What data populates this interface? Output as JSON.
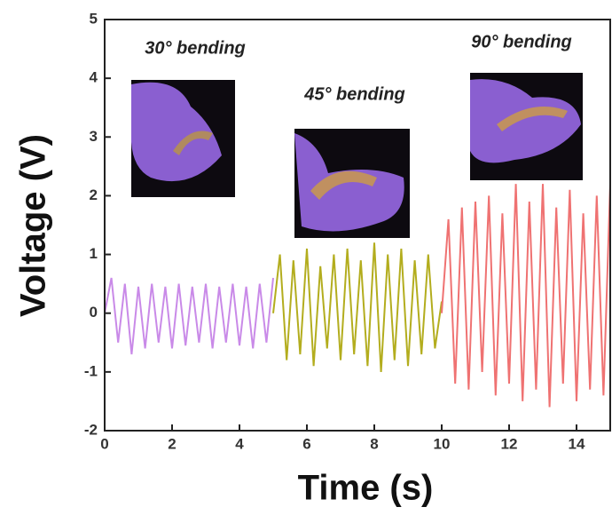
{
  "chart_data": {
    "type": "line",
    "x_label": "Time (s)",
    "y_label": "Voltage (V)",
    "xlim": [
      0,
      15
    ],
    "ylim": [
      -2,
      5
    ],
    "xticks": [
      0,
      2,
      4,
      6,
      8,
      10,
      12,
      14
    ],
    "yticks": [
      -2,
      -1,
      0,
      1,
      2,
      3,
      4,
      5
    ],
    "annotations": [
      "30° bending",
      "45° bending",
      "90° bending"
    ],
    "series": [
      {
        "color": "#c98ae8",
        "x": [
          0.0,
          0.2,
          0.4,
          0.6,
          0.8,
          1.0,
          1.2,
          1.4,
          1.6,
          1.8,
          2.0,
          2.2,
          2.4,
          2.6,
          2.8,
          3.0,
          3.2,
          3.4,
          3.6,
          3.8,
          4.0,
          4.2,
          4.4,
          4.6,
          4.8,
          5.0
        ],
        "values": [
          0,
          0.6,
          -0.5,
          0.5,
          -0.7,
          0.45,
          -0.6,
          0.5,
          -0.5,
          0.45,
          -0.6,
          0.5,
          -0.55,
          0.45,
          -0.5,
          0.5,
          -0.6,
          0.45,
          -0.5,
          0.5,
          -0.55,
          0.45,
          -0.6,
          0.5,
          -0.5,
          0.6
        ]
      },
      {
        "color": "#b3ad1e",
        "x": [
          5.0,
          5.2,
          5.4,
          5.6,
          5.8,
          6.0,
          6.2,
          6.4,
          6.6,
          6.8,
          7.0,
          7.2,
          7.4,
          7.6,
          7.8,
          8.0,
          8.2,
          8.4,
          8.6,
          8.8,
          9.0,
          9.2,
          9.4,
          9.6,
          9.8,
          10.0
        ],
        "values": [
          0,
          1.0,
          -0.8,
          0.9,
          -0.7,
          1.1,
          -0.9,
          0.8,
          -0.6,
          1.0,
          -0.8,
          1.1,
          -0.7,
          0.9,
          -0.9,
          1.2,
          -1.0,
          1.0,
          -0.8,
          1.1,
          -0.9,
          0.9,
          -0.7,
          1.0,
          -0.6,
          0.2
        ]
      },
      {
        "color": "#ef7272",
        "x": [
          10.0,
          10.2,
          10.4,
          10.6,
          10.8,
          11.0,
          11.2,
          11.4,
          11.6,
          11.8,
          12.0,
          12.2,
          12.4,
          12.6,
          12.8,
          13.0,
          13.2,
          13.4,
          13.6,
          13.8,
          14.0,
          14.2,
          14.4,
          14.6,
          14.8,
          15.0
        ],
        "values": [
          0,
          1.6,
          -1.2,
          1.8,
          -1.3,
          1.9,
          -1.0,
          2.0,
          -1.4,
          1.7,
          -1.2,
          2.2,
          -1.5,
          1.9,
          -1.3,
          2.2,
          -1.6,
          1.8,
          -1.2,
          2.1,
          -1.5,
          1.7,
          -1.3,
          2.0,
          -1.4,
          2.2
        ]
      }
    ]
  }
}
